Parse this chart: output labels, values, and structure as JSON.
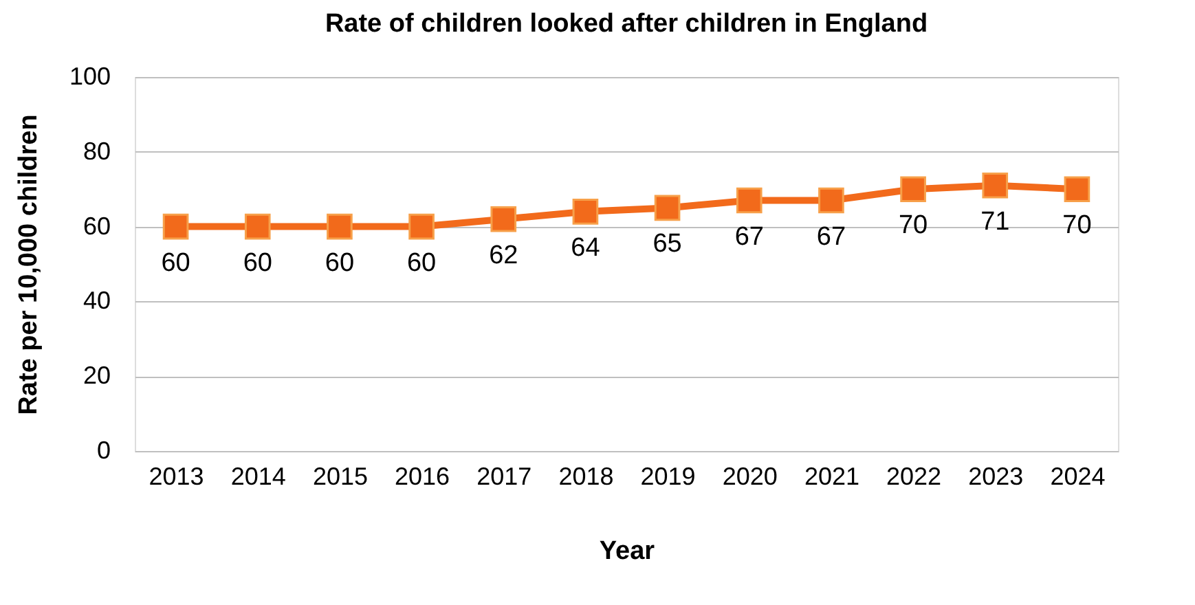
{
  "chart_data": {
    "type": "line",
    "title": "Rate of children looked after children in England",
    "xlabel": "Year",
    "ylabel": "Rate per 10,000 children",
    "categories": [
      "2013",
      "2014",
      "2015",
      "2016",
      "2017",
      "2018",
      "2019",
      "2020",
      "2021",
      "2022",
      "2023",
      "2024"
    ],
    "series": [
      {
        "color": "#f26a1b",
        "values": [
          60,
          60,
          60,
          60,
          62,
          64,
          65,
          67,
          67,
          70,
          71,
          70
        ]
      }
    ],
    "ylim": [
      0,
      100
    ],
    "yticks": [
      0,
      20,
      40,
      60,
      80,
      100
    ],
    "grid": "y",
    "marker": "square",
    "line_style": "solid",
    "data_labels": true
  }
}
